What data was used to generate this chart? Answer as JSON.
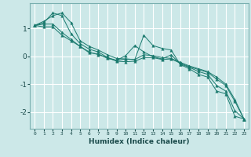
{
  "title": "",
  "xlabel": "Humidex (Indice chaleur)",
  "ylabel": "",
  "bg_color": "#cce8e8",
  "grid_color": "#ffffff",
  "line_color": "#1a7a6e",
  "marker_color": "#1a7a6e",
  "xlim": [
    -0.5,
    23.5
  ],
  "ylim": [
    -2.6,
    1.9
  ],
  "yticks": [
    -2,
    -1,
    0,
    1
  ],
  "xticks": [
    0,
    1,
    2,
    3,
    4,
    5,
    6,
    7,
    8,
    9,
    10,
    11,
    12,
    13,
    14,
    15,
    16,
    17,
    18,
    19,
    20,
    21,
    22,
    23
  ],
  "series": [
    [
      1.1,
      1.25,
      1.45,
      1.55,
      1.2,
      0.55,
      0.35,
      0.22,
      0.05,
      -0.08,
      -0.1,
      -0.12,
      0.75,
      0.38,
      0.28,
      0.22,
      -0.3,
      -0.45,
      -0.65,
      -0.75,
      -1.25,
      -1.35,
      -2.15,
      -2.25
    ],
    [
      1.1,
      1.2,
      1.55,
      1.45,
      0.8,
      0.45,
      0.25,
      0.15,
      -0.05,
      -0.15,
      0.02,
      0.38,
      0.15,
      -0.02,
      -0.1,
      0.05,
      -0.28,
      -0.4,
      -0.55,
      -0.65,
      -1.05,
      -1.25,
      -1.95,
      -2.25
    ],
    [
      1.1,
      1.15,
      1.15,
      0.85,
      0.6,
      0.35,
      0.12,
      0.08,
      -0.08,
      -0.15,
      -0.1,
      -0.12,
      0.05,
      0.02,
      -0.05,
      -0.08,
      -0.22,
      -0.35,
      -0.45,
      -0.55,
      -0.75,
      -1.0,
      -1.55,
      -2.25
    ],
    [
      1.1,
      1.05,
      1.05,
      0.75,
      0.55,
      0.35,
      0.15,
      0.05,
      -0.05,
      -0.18,
      -0.2,
      -0.18,
      -0.05,
      -0.05,
      -0.12,
      -0.1,
      -0.25,
      -0.38,
      -0.48,
      -0.58,
      -0.82,
      -1.05,
      -1.62,
      -2.25
    ]
  ]
}
